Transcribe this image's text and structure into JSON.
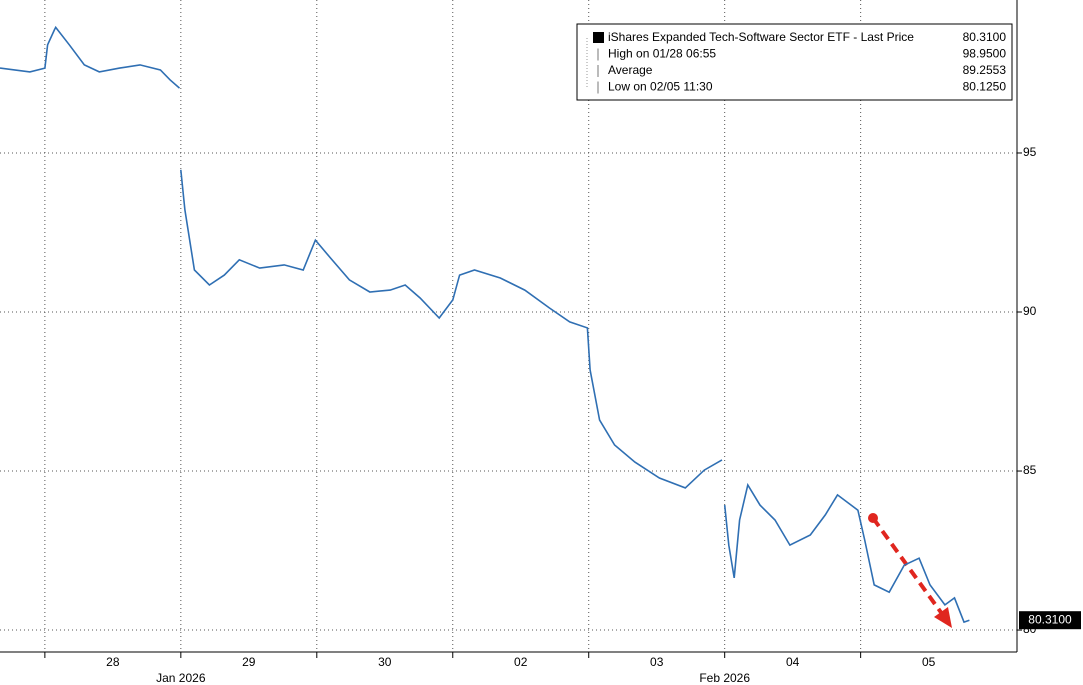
{
  "chart_data": {
    "type": "line",
    "series": [
      {
        "name": "iShares Expanded Tech-Software Sector ETF - Last Price",
        "color": "#2f6fb3",
        "x": [
          -0.33,
          -0.11,
          0,
          0.02,
          0.07,
          0.08,
          0.18,
          0.29,
          0.4,
          0.55,
          0.7,
          0.85,
          0.92,
          0.99,
          null,
          1.0,
          1.03,
          1.1,
          1.21,
          1.32,
          1.43,
          1.58,
          1.76,
          1.9,
          1.99,
          2.1,
          2.24,
          2.39,
          2.54,
          2.65,
          2.76,
          2.9,
          3.0,
          3.05,
          3.16,
          3.35,
          3.53,
          3.71,
          3.86,
          3.99,
          4.01,
          4.08,
          4.19,
          4.34,
          4.52,
          4.71,
          4.85,
          4.98,
          null,
          5.0,
          5.03,
          5.07,
          5.11,
          5.17,
          5.26,
          5.37,
          5.48,
          5.63,
          5.74,
          5.83,
          5.98,
          6.03,
          6.1,
          6.21,
          6.32,
          6.43,
          6.51,
          6.62,
          6.69,
          6.76,
          6.8
        ],
        "values": [
          97.67,
          97.55,
          97.67,
          98.4,
          98.87,
          98.95,
          98.4,
          97.77,
          97.55,
          97.67,
          97.77,
          97.61,
          97.3,
          97.04,
          null,
          94.47,
          93.21,
          91.32,
          90.85,
          91.16,
          91.64,
          91.38,
          91.48,
          91.32,
          92.26,
          91.7,
          91.01,
          90.63,
          90.69,
          90.85,
          90.44,
          89.81,
          90.38,
          91.16,
          91.32,
          91.07,
          90.69,
          90.13,
          89.69,
          89.5,
          88.18,
          86.6,
          85.82,
          85.28,
          84.78,
          84.47,
          85.03,
          85.35,
          null,
          83.93,
          82.67,
          81.64,
          83.46,
          84.56,
          83.93,
          83.46,
          82.67,
          82.99,
          83.62,
          84.25,
          83.77,
          82.83,
          81.42,
          81.19,
          82.04,
          82.26,
          81.42,
          80.79,
          81.01,
          80.25,
          80.31
        ]
      }
    ],
    "xlim": [
      -0.33,
      7.15
    ],
    "xticks": [
      {
        "value": 0.5,
        "label": "28"
      },
      {
        "value": 1.5,
        "label": "29"
      },
      {
        "value": 2.5,
        "label": "30"
      },
      {
        "value": 3.5,
        "label": "02"
      },
      {
        "value": 4.5,
        "label": "03"
      },
      {
        "value": 5.5,
        "label": "04"
      },
      {
        "value": 6.5,
        "label": "05"
      }
    ],
    "month_labels": [
      {
        "value": 1,
        "label": "Jan 2026"
      },
      {
        "value": 5,
        "label": "Feb 2026"
      }
    ],
    "ylim": [
      79.31,
      99.81
    ],
    "yticks": [
      80,
      85,
      90,
      95
    ],
    "grid": true,
    "last_price": {
      "value": 80.31,
      "label": "80.3100"
    },
    "legend": [
      {
        "label": "iShares Expanded Tech-Software Sector ETF - Last Price",
        "value": "80.3100"
      },
      {
        "label": "High on 01/28 06:55",
        "value": "98.9500"
      },
      {
        "label": "Average",
        "value": "89.2553"
      },
      {
        "label": "Low on 02/05 11:30",
        "value": "80.1250"
      }
    ]
  }
}
